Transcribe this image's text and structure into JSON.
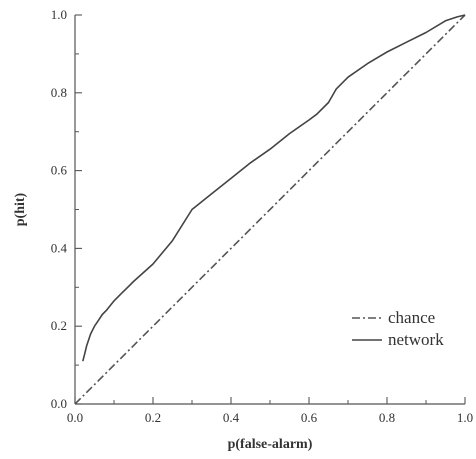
{
  "chart_data": {
    "type": "line",
    "title": "",
    "xlabel": "p(false-alarm)",
    "ylabel": "p(hit)",
    "xlim": [
      0.0,
      1.0
    ],
    "ylim": [
      0.0,
      1.0
    ],
    "xticks": [
      0.0,
      0.2,
      0.4,
      0.6,
      0.8,
      1.0
    ],
    "yticks": [
      0.0,
      0.2,
      0.4,
      0.6,
      0.8,
      1.0
    ],
    "xtick_labels": [
      "0.0",
      "0.2",
      "0.4",
      "0.6",
      "0.8",
      "1.0"
    ],
    "ytick_labels": [
      "0.0",
      "0.2",
      "0.4",
      "0.6",
      "0.8",
      "1.0"
    ],
    "grid": false,
    "legend_position": "lower-right",
    "series": [
      {
        "name": "chance",
        "style": "dash-dot",
        "color": "#555555",
        "x": [
          0.0,
          1.0
        ],
        "y": [
          0.0,
          1.0
        ]
      },
      {
        "name": "network",
        "style": "solid",
        "color": "#444444",
        "x": [
          0.02,
          0.025,
          0.03,
          0.04,
          0.05,
          0.06,
          0.07,
          0.08,
          0.1,
          0.12,
          0.15,
          0.2,
          0.25,
          0.3,
          0.35,
          0.4,
          0.45,
          0.5,
          0.55,
          0.6,
          0.62,
          0.65,
          0.67,
          0.7,
          0.75,
          0.8,
          0.85,
          0.9,
          0.95,
          0.98,
          1.0
        ],
        "y": [
          0.11,
          0.13,
          0.15,
          0.18,
          0.2,
          0.215,
          0.23,
          0.24,
          0.265,
          0.285,
          0.315,
          0.36,
          0.42,
          0.5,
          0.54,
          0.58,
          0.62,
          0.655,
          0.695,
          0.73,
          0.745,
          0.775,
          0.81,
          0.84,
          0.875,
          0.905,
          0.93,
          0.955,
          0.985,
          0.995,
          1.0
        ]
      }
    ]
  }
}
